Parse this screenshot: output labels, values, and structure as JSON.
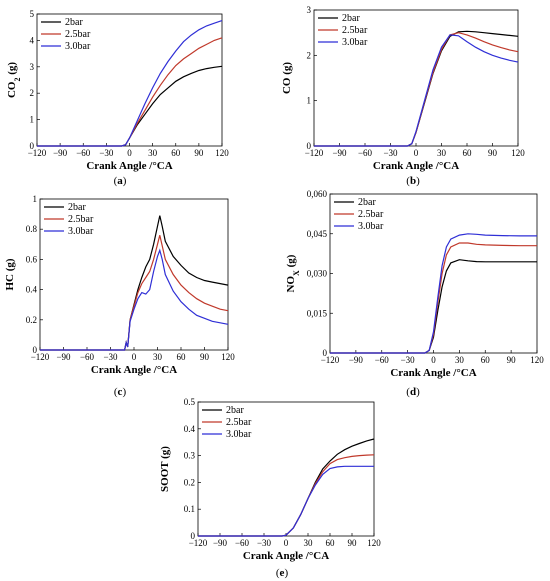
{
  "chart_data": [
    {
      "id": "a",
      "type": "line",
      "caption_prefix": "(",
      "caption_letter": "a",
      "caption_suffix": ")",
      "ylabel_main": "CO",
      "ylabel_sub": "2",
      "ylabel_units": " (g)",
      "xlabel": "Crank Angle /°CA",
      "xlim": [
        -120,
        120
      ],
      "ylim": [
        0,
        5
      ],
      "xticks": [
        "−120",
        "−90",
        "−60",
        "−30",
        "0",
        "30",
        "60",
        "90",
        "120"
      ],
      "xtick_values": [
        -120,
        -90,
        -60,
        -30,
        0,
        30,
        60,
        90,
        120
      ],
      "yticks": [
        "0",
        "1",
        "2",
        "3",
        "4",
        "5"
      ],
      "ytick_values": [
        0,
        1,
        2,
        3,
        4,
        5
      ],
      "legend": [
        "2bar",
        "2.5bar",
        "3.0bar"
      ],
      "series": [
        {
          "name": "2bar",
          "color": "#000000",
          "x": [
            -120,
            -10,
            -5,
            0,
            10,
            20,
            30,
            40,
            50,
            60,
            70,
            80,
            90,
            100,
            110,
            120
          ],
          "y": [
            0,
            0,
            0.05,
            0.3,
            0.8,
            1.2,
            1.6,
            1.95,
            2.2,
            2.45,
            2.62,
            2.75,
            2.86,
            2.93,
            2.98,
            3.02
          ]
        },
        {
          "name": "2.5bar",
          "color": "#c0392b",
          "x": [
            -120,
            -10,
            -5,
            0,
            10,
            20,
            30,
            40,
            50,
            60,
            70,
            80,
            90,
            100,
            110,
            120
          ],
          "y": [
            0,
            0,
            0.05,
            0.3,
            0.85,
            1.35,
            1.85,
            2.3,
            2.7,
            3.05,
            3.3,
            3.5,
            3.7,
            3.85,
            4.0,
            4.1
          ]
        },
        {
          "name": "3.0bar",
          "color": "#2f2fd6",
          "x": [
            -120,
            -10,
            -5,
            0,
            10,
            20,
            30,
            40,
            50,
            60,
            70,
            80,
            90,
            100,
            110,
            120
          ],
          "y": [
            0,
            0,
            0.05,
            0.3,
            0.95,
            1.6,
            2.2,
            2.75,
            3.2,
            3.6,
            3.95,
            4.2,
            4.4,
            4.55,
            4.65,
            4.75
          ]
        }
      ]
    },
    {
      "id": "b",
      "type": "line",
      "caption_prefix": "(",
      "caption_letter": "b",
      "caption_suffix": ")",
      "ylabel_main": "CO",
      "ylabel_sub": "",
      "ylabel_units": " (g)",
      "xlabel": "Crank Angle /°CA",
      "xlim": [
        -120,
        120
      ],
      "ylim": [
        0,
        3
      ],
      "xticks": [
        "−120",
        "−90",
        "−60",
        "−30",
        "0",
        "30",
        "60",
        "90",
        "120"
      ],
      "xtick_values": [
        -120,
        -90,
        -60,
        -30,
        0,
        30,
        60,
        90,
        120
      ],
      "yticks": [
        "0",
        "1",
        "2",
        "3"
      ],
      "ytick_values": [
        0,
        1,
        2,
        3
      ],
      "legend": [
        "2bar",
        "2.5bar",
        "3.0bar"
      ],
      "series": [
        {
          "name": "2bar",
          "color": "#000000",
          "x": [
            -120,
            -10,
            -5,
            0,
            10,
            20,
            30,
            40,
            50,
            60,
            70,
            80,
            90,
            100,
            110,
            120
          ],
          "y": [
            0,
            0,
            0.05,
            0.3,
            0.95,
            1.6,
            2.1,
            2.42,
            2.52,
            2.53,
            2.52,
            2.5,
            2.48,
            2.46,
            2.44,
            2.42
          ]
        },
        {
          "name": "2.5bar",
          "color": "#c0392b",
          "x": [
            -120,
            -10,
            -5,
            0,
            10,
            20,
            30,
            40,
            50,
            60,
            70,
            80,
            90,
            100,
            110,
            120
          ],
          "y": [
            0,
            0,
            0.05,
            0.3,
            0.97,
            1.62,
            2.13,
            2.45,
            2.5,
            2.45,
            2.38,
            2.3,
            2.23,
            2.17,
            2.12,
            2.08
          ]
        },
        {
          "name": "3.0bar",
          "color": "#2f2fd6",
          "x": [
            -120,
            -10,
            -5,
            0,
            10,
            20,
            30,
            40,
            50,
            60,
            70,
            80,
            90,
            100,
            110,
            120
          ],
          "y": [
            0,
            0,
            0.05,
            0.32,
            1.0,
            1.68,
            2.18,
            2.45,
            2.43,
            2.3,
            2.18,
            2.08,
            2.0,
            1.94,
            1.89,
            1.85
          ]
        }
      ]
    },
    {
      "id": "c",
      "type": "line",
      "caption_prefix": "(",
      "caption_letter": "c",
      "caption_suffix": ")",
      "ylabel_main": "HC",
      "ylabel_sub": "",
      "ylabel_units": " (g)",
      "xlabel": "Crank Angle /°CA",
      "xlim": [
        -120,
        120
      ],
      "ylim": [
        0,
        1
      ],
      "xticks": [
        "−120",
        "−90",
        "−60",
        "−30",
        "0",
        "30",
        "60",
        "90",
        "120"
      ],
      "xtick_values": [
        -120,
        -90,
        -60,
        -30,
        0,
        30,
        60,
        90,
        120
      ],
      "yticks": [
        "0",
        "0.2",
        "0.4",
        "0.6",
        "0.8",
        "1"
      ],
      "ytick_values": [
        0,
        0.2,
        0.4,
        0.6,
        0.8,
        1
      ],
      "legend": [
        "2bar",
        "2.5bar",
        "3.0bar"
      ],
      "series": [
        {
          "name": "2bar",
          "color": "#000000",
          "x": [
            -120,
            -12,
            -10,
            -8,
            -5,
            0,
            5,
            10,
            15,
            20,
            25,
            30,
            33,
            36,
            40,
            50,
            60,
            70,
            80,
            90,
            100,
            110,
            120
          ],
          "y": [
            0,
            0,
            0.05,
            0.02,
            0.2,
            0.3,
            0.4,
            0.48,
            0.55,
            0.6,
            0.7,
            0.82,
            0.89,
            0.82,
            0.72,
            0.62,
            0.56,
            0.51,
            0.48,
            0.46,
            0.45,
            0.44,
            0.43
          ]
        },
        {
          "name": "2.5bar",
          "color": "#c0392b",
          "x": [
            -120,
            -12,
            -10,
            -8,
            -5,
            0,
            5,
            10,
            15,
            20,
            25,
            30,
            33,
            36,
            40,
            50,
            60,
            70,
            80,
            90,
            100,
            110,
            120
          ],
          "y": [
            0,
            0,
            0.05,
            0.02,
            0.2,
            0.29,
            0.38,
            0.44,
            0.48,
            0.52,
            0.6,
            0.7,
            0.76,
            0.69,
            0.6,
            0.5,
            0.43,
            0.38,
            0.34,
            0.31,
            0.29,
            0.27,
            0.26
          ]
        },
        {
          "name": "3.0bar",
          "color": "#2f2fd6",
          "x": [
            -120,
            -12,
            -10,
            -8,
            -5,
            0,
            5,
            10,
            15,
            20,
            25,
            30,
            33,
            36,
            40,
            50,
            60,
            70,
            80,
            90,
            100,
            110,
            120
          ],
          "y": [
            0,
            0,
            0.05,
            0.02,
            0.19,
            0.27,
            0.34,
            0.38,
            0.37,
            0.4,
            0.52,
            0.62,
            0.66,
            0.6,
            0.5,
            0.39,
            0.32,
            0.27,
            0.23,
            0.21,
            0.19,
            0.18,
            0.17
          ]
        }
      ]
    },
    {
      "id": "d",
      "type": "line",
      "caption_prefix": "(",
      "caption_letter": "d",
      "caption_suffix": ")",
      "ylabel_main": "NO",
      "ylabel_sub": "X",
      "ylabel_units": "  (g)",
      "xlabel": "Crank Angle /°CA",
      "xlim": [
        -120,
        120
      ],
      "ylim": [
        0,
        0.06
      ],
      "xticks": [
        "−120",
        "−90",
        "−60",
        "−30",
        "0",
        "30",
        "60",
        "90",
        "120"
      ],
      "xtick_values": [
        -120,
        -90,
        -60,
        -30,
        0,
        30,
        60,
        90,
        120
      ],
      "yticks": [
        "0",
        "0,015",
        "0,030",
        "0,045",
        "0,060"
      ],
      "ytick_values": [
        0,
        0.015,
        0.03,
        0.045,
        0.06
      ],
      "legend": [
        "2bar",
        "2.5bar",
        "3.0bar"
      ],
      "series": [
        {
          "name": "2bar",
          "color": "#000000",
          "x": [
            -120,
            -10,
            -5,
            0,
            5,
            10,
            15,
            20,
            30,
            40,
            50,
            60,
            80,
            100,
            120
          ],
          "y": [
            0,
            0,
            0.001,
            0.006,
            0.016,
            0.025,
            0.031,
            0.034,
            0.0352,
            0.0348,
            0.0345,
            0.0344,
            0.0344,
            0.0344,
            0.0344
          ]
        },
        {
          "name": "2.5bar",
          "color": "#c0392b",
          "x": [
            -120,
            -10,
            -5,
            0,
            5,
            10,
            15,
            20,
            30,
            40,
            50,
            60,
            80,
            100,
            120
          ],
          "y": [
            0,
            0,
            0.001,
            0.007,
            0.019,
            0.03,
            0.037,
            0.04,
            0.0415,
            0.0415,
            0.041,
            0.0408,
            0.0406,
            0.0405,
            0.0405
          ]
        },
        {
          "name": "3.0bar",
          "color": "#2f2fd6",
          "x": [
            -120,
            -10,
            -5,
            0,
            5,
            10,
            15,
            20,
            30,
            40,
            50,
            60,
            80,
            100,
            120
          ],
          "y": [
            0,
            0,
            0.001,
            0.008,
            0.021,
            0.033,
            0.04,
            0.043,
            0.0445,
            0.045,
            0.0448,
            0.0445,
            0.0443,
            0.0442,
            0.0442
          ]
        }
      ]
    },
    {
      "id": "e",
      "type": "line",
      "caption_prefix": "(",
      "caption_letter": "e",
      "caption_suffix": ")",
      "ylabel_main": "SOOT",
      "ylabel_sub": "",
      "ylabel_units": "  (g)",
      "xlabel": "Crank Angle /°CA",
      "xlim": [
        -120,
        120
      ],
      "ylim": [
        0,
        0.5
      ],
      "xticks": [
        "−120",
        "−90",
        "−60",
        "−30",
        "0",
        "30",
        "60",
        "90",
        "120"
      ],
      "xtick_values": [
        -120,
        -90,
        -60,
        -30,
        0,
        30,
        60,
        90,
        120
      ],
      "yticks": [
        "0",
        "0.1",
        "0.2",
        "0.3",
        "0.4",
        "0.5"
      ],
      "ytick_values": [
        0,
        0.1,
        0.2,
        0.3,
        0.4,
        0.5
      ],
      "legend": [
        "2bar",
        "2.5bar",
        "3.0bar"
      ],
      "series": [
        {
          "name": "2bar",
          "color": "#000000",
          "x": [
            -120,
            -5,
            0,
            10,
            20,
            30,
            40,
            50,
            60,
            70,
            80,
            90,
            100,
            110,
            120
          ],
          "y": [
            0,
            0,
            0.003,
            0.03,
            0.08,
            0.14,
            0.2,
            0.25,
            0.28,
            0.305,
            0.322,
            0.335,
            0.345,
            0.355,
            0.362
          ]
        },
        {
          "name": "2.5bar",
          "color": "#c0392b",
          "x": [
            -120,
            -5,
            0,
            10,
            20,
            30,
            40,
            50,
            60,
            70,
            80,
            90,
            100,
            110,
            120
          ],
          "y": [
            0,
            0,
            0.003,
            0.03,
            0.08,
            0.14,
            0.195,
            0.24,
            0.27,
            0.285,
            0.292,
            0.297,
            0.3,
            0.302,
            0.303
          ]
        },
        {
          "name": "3.0bar",
          "color": "#2f2fd6",
          "x": [
            -120,
            -5,
            0,
            10,
            20,
            30,
            40,
            50,
            60,
            70,
            80,
            90,
            100,
            110,
            120
          ],
          "y": [
            0,
            0,
            0.003,
            0.03,
            0.08,
            0.14,
            0.19,
            0.23,
            0.252,
            0.258,
            0.26,
            0.26,
            0.26,
            0.26,
            0.26
          ]
        }
      ]
    }
  ]
}
